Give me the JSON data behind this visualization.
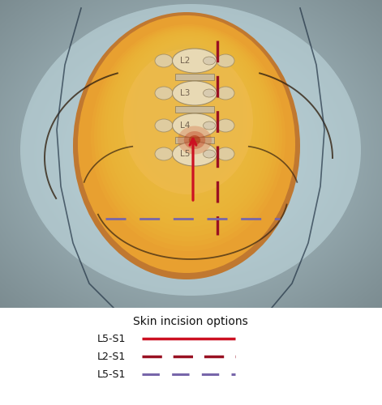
{
  "bg_color": "#b5cdd4",
  "title": "Skin incision options",
  "legend_entries": [
    {
      "label": "L5-S1",
      "color": "#cc1122",
      "linestyle": "solid",
      "linewidth": 2.5
    },
    {
      "label": "L2-S1",
      "color": "#991122",
      "linestyle": "dashed",
      "linewidth": 2.5
    },
    {
      "label": "L5-S1",
      "color": "#7766aa",
      "linestyle": "dashed",
      "linewidth": 2.2
    }
  ],
  "legend_title_fontsize": 10,
  "legend_label_fontsize": 9,
  "figsize": [
    4.71,
    5.0
  ],
  "dpi": 100
}
